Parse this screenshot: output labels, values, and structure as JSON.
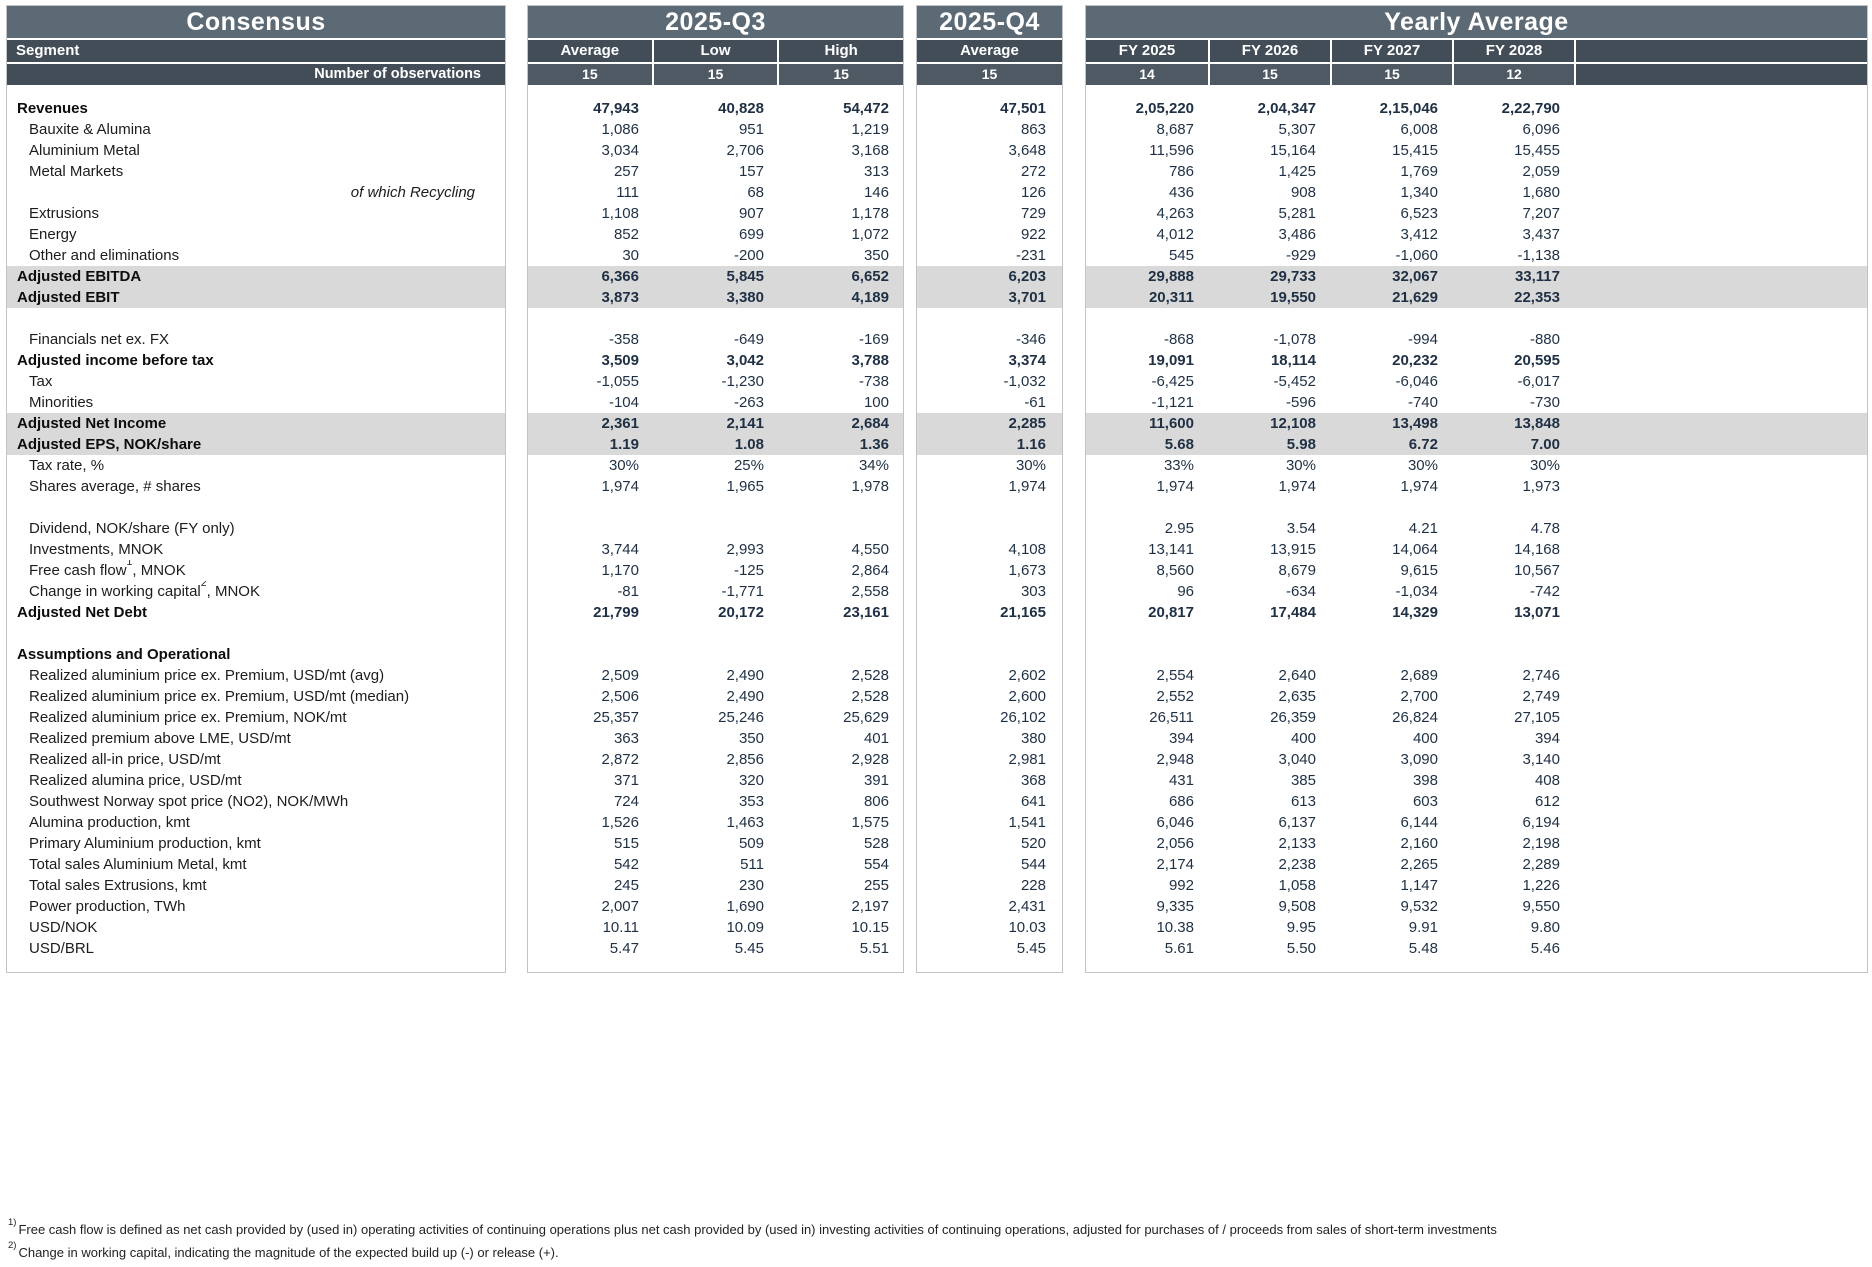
{
  "colors": {
    "title_bar": "#5c6a75",
    "header_bar": "#424d58",
    "obs_cell": "#4e5963",
    "highlight_row": "#d9d9d9",
    "value_text": "#1f3044"
  },
  "panels": {
    "consensus": {
      "title": "Consensus",
      "segment_label": "Segment",
      "obs_label": "Number of observations"
    },
    "q3": {
      "title": "2025-Q3",
      "columns": [
        "Average",
        "Low",
        "High"
      ],
      "observations": [
        "15",
        "15",
        "15"
      ]
    },
    "q4": {
      "title": "2025-Q4",
      "columns": [
        "Average"
      ],
      "observations": [
        "15"
      ]
    },
    "yearly": {
      "title": "Yearly Average",
      "columns": [
        "FY 2025",
        "FY 2026",
        "FY 2027",
        "FY 2028"
      ],
      "observations": [
        "14",
        "15",
        "15",
        "12"
      ]
    }
  },
  "rows": [
    {
      "label": "Revenues",
      "style": "bold",
      "q3": [
        "47,943",
        "40,828",
        "54,472"
      ],
      "q4": [
        "47,501"
      ],
      "fy": [
        "2,05,220",
        "2,04,347",
        "2,15,046",
        "2,22,790"
      ]
    },
    {
      "label": "Bauxite & Alumina",
      "style": "plain",
      "q3": [
        "1,086",
        "951",
        "1,219"
      ],
      "q4": [
        "863"
      ],
      "fy": [
        "8,687",
        "5,307",
        "6,008",
        "6,096"
      ]
    },
    {
      "label": "Aluminium Metal",
      "style": "plain",
      "q3": [
        "3,034",
        "2,706",
        "3,168"
      ],
      "q4": [
        "3,648"
      ],
      "fy": [
        "11,596",
        "15,164",
        "15,415",
        "15,455"
      ]
    },
    {
      "label": "Metal Markets",
      "style": "plain",
      "q3": [
        "257",
        "157",
        "313"
      ],
      "q4": [
        "272"
      ],
      "fy": [
        "786",
        "1,425",
        "1,769",
        "2,059"
      ]
    },
    {
      "label": "of which Recycling",
      "style": "italic-right",
      "q3": [
        "111",
        "68",
        "146"
      ],
      "q4": [
        "126"
      ],
      "fy": [
        "436",
        "908",
        "1,340",
        "1,680"
      ]
    },
    {
      "label": "Extrusions",
      "style": "plain",
      "q3": [
        "1,108",
        "907",
        "1,178"
      ],
      "q4": [
        "729"
      ],
      "fy": [
        "4,263",
        "5,281",
        "6,523",
        "7,207"
      ]
    },
    {
      "label": "Energy",
      "style": "plain",
      "q3": [
        "852",
        "699",
        "1,072"
      ],
      "q4": [
        "922"
      ],
      "fy": [
        "4,012",
        "3,486",
        "3,412",
        "3,437"
      ]
    },
    {
      "label": "Other and eliminations",
      "style": "plain",
      "q3": [
        "30",
        "-200",
        "350"
      ],
      "q4": [
        "-231"
      ],
      "fy": [
        "545",
        "-929",
        "-1,060",
        "-1,138"
      ]
    },
    {
      "label": "Adjusted EBITDA",
      "style": "highlight",
      "q3": [
        "6,366",
        "5,845",
        "6,652"
      ],
      "q4": [
        "6,203"
      ],
      "fy": [
        "29,888",
        "29,733",
        "32,067",
        "33,117"
      ]
    },
    {
      "label": "Adjusted EBIT",
      "style": "highlight",
      "q3": [
        "3,873",
        "3,380",
        "4,189"
      ],
      "q4": [
        "3,701"
      ],
      "fy": [
        "20,311",
        "19,550",
        "21,629",
        "22,353"
      ]
    },
    {
      "label": "",
      "style": "blank"
    },
    {
      "label": "Financials net ex. FX",
      "style": "plain",
      "q3": [
        "-358",
        "-649",
        "-169"
      ],
      "q4": [
        "-346"
      ],
      "fy": [
        "-868",
        "-1,078",
        "-994",
        "-880"
      ]
    },
    {
      "label": "Adjusted income before tax",
      "style": "bold",
      "q3": [
        "3,509",
        "3,042",
        "3,788"
      ],
      "q4": [
        "3,374"
      ],
      "fy": [
        "19,091",
        "18,114",
        "20,232",
        "20,595"
      ]
    },
    {
      "label": "Tax",
      "style": "plain",
      "q3": [
        "-1,055",
        "-1,230",
        "-738"
      ],
      "q4": [
        "-1,032"
      ],
      "fy": [
        "-6,425",
        "-5,452",
        "-6,046",
        "-6,017"
      ]
    },
    {
      "label": "Minorities",
      "style": "plain",
      "q3": [
        "-104",
        "-263",
        "100"
      ],
      "q4": [
        "-61"
      ],
      "fy": [
        "-1,121",
        "-596",
        "-740",
        "-730"
      ]
    },
    {
      "label": "Adjusted Net Income",
      "style": "highlight",
      "q3": [
        "2,361",
        "2,141",
        "2,684"
      ],
      "q4": [
        "2,285"
      ],
      "fy": [
        "11,600",
        "12,108",
        "13,498",
        "13,848"
      ]
    },
    {
      "label": "Adjusted EPS, NOK/share",
      "style": "highlight",
      "q3": [
        "1.19",
        "1.08",
        "1.36"
      ],
      "q4": [
        "1.16"
      ],
      "fy": [
        "5.68",
        "5.98",
        "6.72",
        "7.00"
      ]
    },
    {
      "label": "Tax rate, %",
      "style": "plain",
      "q3": [
        "30%",
        "25%",
        "34%"
      ],
      "q4": [
        "30%"
      ],
      "fy": [
        "33%",
        "30%",
        "30%",
        "30%"
      ]
    },
    {
      "label": "Shares average, # shares",
      "style": "plain",
      "q3": [
        "1,974",
        "1,965",
        "1,978"
      ],
      "q4": [
        "1,974"
      ],
      "fy": [
        "1,974",
        "1,974",
        "1,974",
        "1,973"
      ]
    },
    {
      "label": "",
      "style": "blank"
    },
    {
      "label": "Dividend, NOK/share (FY only)",
      "style": "plain",
      "q3": [
        "",
        "",
        ""
      ],
      "q4": [
        ""
      ],
      "fy": [
        "2.95",
        "3.54",
        "4.21",
        "4.78"
      ]
    },
    {
      "label": "Investments, MNOK",
      "style": "plain",
      "q3": [
        "3,744",
        "2,993",
        "4,550"
      ],
      "q4": [
        "4,108"
      ],
      "fy": [
        "13,141",
        "13,915",
        "14,064",
        "14,168"
      ]
    },
    {
      "label": "Free cash flow",
      "sup": "1",
      "label_post": ", MNOK",
      "style": "plain",
      "q3": [
        "1,170",
        "-125",
        "2,864"
      ],
      "q4": [
        "1,673"
      ],
      "fy": [
        "8,560",
        "8,679",
        "9,615",
        "10,567"
      ]
    },
    {
      "label": "Change in working capital",
      "sup": "2",
      "label_post": ", MNOK",
      "style": "plain",
      "q3": [
        "-81",
        "-1,771",
        "2,558"
      ],
      "q4": [
        "303"
      ],
      "fy": [
        "96",
        "-634",
        "-1,034",
        "-742"
      ]
    },
    {
      "label": "Adjusted Net Debt",
      "style": "bold",
      "q3": [
        "21,799",
        "20,172",
        "23,161"
      ],
      "q4": [
        "21,165"
      ],
      "fy": [
        "20,817",
        "17,484",
        "14,329",
        "13,071"
      ]
    },
    {
      "label": "",
      "style": "blank"
    },
    {
      "label": "Assumptions and Operational",
      "style": "section",
      "q3": [
        "",
        "",
        ""
      ],
      "q4": [
        ""
      ],
      "fy": [
        "",
        "",
        "",
        ""
      ]
    },
    {
      "label": "Realized aluminium price ex. Premium, USD/mt (avg)",
      "style": "plain",
      "q3": [
        "2,509",
        "2,490",
        "2,528"
      ],
      "q4": [
        "2,602"
      ],
      "fy": [
        "2,554",
        "2,640",
        "2,689",
        "2,746"
      ]
    },
    {
      "label": "Realized aluminium price ex. Premium, USD/mt (median)",
      "style": "plain",
      "q3": [
        "2,506",
        "2,490",
        "2,528"
      ],
      "q4": [
        "2,600"
      ],
      "fy": [
        "2,552",
        "2,635",
        "2,700",
        "2,749"
      ]
    },
    {
      "label": "Realized aluminium price ex. Premium, NOK/mt",
      "style": "plain",
      "q3": [
        "25,357",
        "25,246",
        "25,629"
      ],
      "q4": [
        "26,102"
      ],
      "fy": [
        "26,511",
        "26,359",
        "26,824",
        "27,105"
      ]
    },
    {
      "label": "Realized premium above LME, USD/mt",
      "style": "plain",
      "q3": [
        "363",
        "350",
        "401"
      ],
      "q4": [
        "380"
      ],
      "fy": [
        "394",
        "400",
        "400",
        "394"
      ]
    },
    {
      "label": "Realized all-in price, USD/mt",
      "style": "plain",
      "q3": [
        "2,872",
        "2,856",
        "2,928"
      ],
      "q4": [
        "2,981"
      ],
      "fy": [
        "2,948",
        "3,040",
        "3,090",
        "3,140"
      ]
    },
    {
      "label": "Realized alumina price, USD/mt",
      "style": "plain",
      "q3": [
        "371",
        "320",
        "391"
      ],
      "q4": [
        "368"
      ],
      "fy": [
        "431",
        "385",
        "398",
        "408"
      ]
    },
    {
      "label": "Southwest Norway spot price (NO2), NOK/MWh",
      "style": "plain",
      "q3": [
        "724",
        "353",
        "806"
      ],
      "q4": [
        "641"
      ],
      "fy": [
        "686",
        "613",
        "603",
        "612"
      ]
    },
    {
      "label": "Alumina production, kmt",
      "style": "plain",
      "q3": [
        "1,526",
        "1,463",
        "1,575"
      ],
      "q4": [
        "1,541"
      ],
      "fy": [
        "6,046",
        "6,137",
        "6,144",
        "6,194"
      ]
    },
    {
      "label": "Primary Aluminium production, kmt",
      "style": "plain",
      "q3": [
        "515",
        "509",
        "528"
      ],
      "q4": [
        "520"
      ],
      "fy": [
        "2,056",
        "2,133",
        "2,160",
        "2,198"
      ]
    },
    {
      "label": "Total sales Aluminium Metal, kmt",
      "style": "plain",
      "q3": [
        "542",
        "511",
        "554"
      ],
      "q4": [
        "544"
      ],
      "fy": [
        "2,174",
        "2,238",
        "2,265",
        "2,289"
      ]
    },
    {
      "label": "Total sales Extrusions, kmt",
      "style": "plain",
      "q3": [
        "245",
        "230",
        "255"
      ],
      "q4": [
        "228"
      ],
      "fy": [
        "992",
        "1,058",
        "1,147",
        "1,226"
      ]
    },
    {
      "label": "Power production, TWh",
      "style": "plain",
      "q3": [
        "2,007",
        "1,690",
        "2,197"
      ],
      "q4": [
        "2,431"
      ],
      "fy": [
        "9,335",
        "9,508",
        "9,532",
        "9,550"
      ]
    },
    {
      "label": "USD/NOK",
      "style": "plain",
      "q3": [
        "10.11",
        "10.09",
        "10.15"
      ],
      "q4": [
        "10.03"
      ],
      "fy": [
        "10.38",
        "9.95",
        "9.91",
        "9.80"
      ]
    },
    {
      "label": "USD/BRL",
      "style": "plain",
      "q3": [
        "5.47",
        "5.45",
        "5.51"
      ],
      "q4": [
        "5.45"
      ],
      "fy": [
        "5.61",
        "5.50",
        "5.48",
        "5.46"
      ]
    }
  ],
  "footnotes": [
    {
      "marker": "1)",
      "text": "Free cash flow is defined as net cash provided by (used in) operating activities of continuing operations plus net cash provided by (used in) investing activities of continuing operations, adjusted for purchases of / proceeds from sales of short-term investments"
    },
    {
      "marker": "2)",
      "text": "Change in working capital, indicating the magnitude of the expected build up (-) or release (+)."
    }
  ]
}
